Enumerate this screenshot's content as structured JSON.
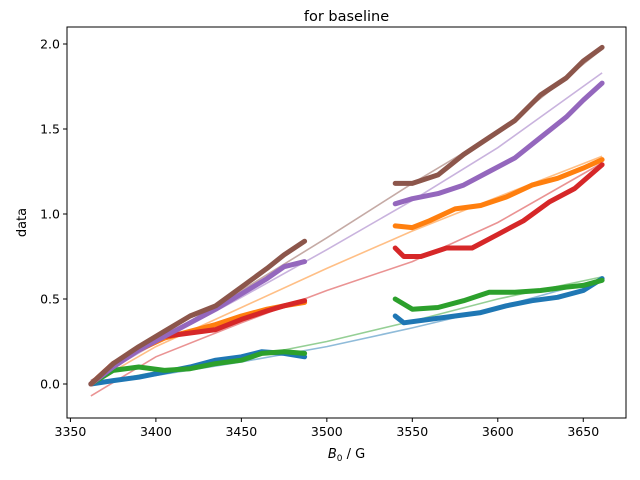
{
  "chart_data": {
    "type": "line",
    "title": "for baseline",
    "xlabel_main": "B",
    "xlabel_sub": "0",
    "xlabel_rest": " / G",
    "ylabel": "data",
    "xlim": [
      3348,
      3675
    ],
    "ylim": [
      -0.2,
      2.1
    ],
    "xticks": [
      3350,
      3400,
      3450,
      3500,
      3550,
      3600,
      3650
    ],
    "yticks": [
      0.0,
      0.5,
      1.0,
      1.5,
      2.0
    ],
    "grid": false,
    "series": [
      {
        "color": "#1f77b4",
        "data": [
          [
            3362,
            0.0
          ],
          [
            3375,
            0.02
          ],
          [
            3390,
            0.04
          ],
          [
            3405,
            0.07
          ],
          [
            3420,
            0.1
          ],
          [
            3435,
            0.14
          ],
          [
            3450,
            0.16
          ],
          [
            3462,
            0.19
          ],
          [
            3475,
            0.18
          ],
          [
            3487,
            0.16
          ],
          [
            3540,
            0.4
          ],
          [
            3545,
            0.36
          ],
          [
            3560,
            0.38
          ],
          [
            3575,
            0.4
          ],
          [
            3590,
            0.42
          ],
          [
            3605,
            0.46
          ],
          [
            3620,
            0.49
          ],
          [
            3635,
            0.51
          ],
          [
            3650,
            0.55
          ],
          [
            3661,
            0.62
          ]
        ],
        "fit": [
          [
            3362,
            0.0
          ],
          [
            3400,
            0.05
          ],
          [
            3450,
            0.13
          ],
          [
            3500,
            0.22
          ],
          [
            3550,
            0.33
          ],
          [
            3600,
            0.45
          ],
          [
            3661,
            0.62
          ]
        ]
      },
      {
        "color": "#ff7f0e",
        "data": [
          [
            3362,
            0.0
          ],
          [
            3375,
            0.12
          ],
          [
            3390,
            0.2
          ],
          [
            3405,
            0.27
          ],
          [
            3420,
            0.31
          ],
          [
            3435,
            0.35
          ],
          [
            3450,
            0.4
          ],
          [
            3465,
            0.44
          ],
          [
            3475,
            0.46
          ],
          [
            3487,
            0.48
          ],
          [
            3540,
            0.93
          ],
          [
            3550,
            0.92
          ],
          [
            3560,
            0.96
          ],
          [
            3575,
            1.03
          ],
          [
            3590,
            1.05
          ],
          [
            3605,
            1.1
          ],
          [
            3620,
            1.17
          ],
          [
            3635,
            1.21
          ],
          [
            3650,
            1.27
          ],
          [
            3661,
            1.32
          ]
        ],
        "fit": [
          [
            3362,
            0.0
          ],
          [
            3400,
            0.22
          ],
          [
            3450,
            0.45
          ],
          [
            3500,
            0.68
          ],
          [
            3550,
            0.9
          ],
          [
            3600,
            1.1
          ],
          [
            3661,
            1.34
          ]
        ]
      },
      {
        "color": "#2ca02c",
        "data": [
          [
            3362,
            0.0
          ],
          [
            3375,
            0.08
          ],
          [
            3390,
            0.1
          ],
          [
            3405,
            0.08
          ],
          [
            3420,
            0.09
          ],
          [
            3435,
            0.12
          ],
          [
            3450,
            0.14
          ],
          [
            3462,
            0.18
          ],
          [
            3475,
            0.19
          ],
          [
            3487,
            0.18
          ],
          [
            3540,
            0.5
          ],
          [
            3550,
            0.44
          ],
          [
            3565,
            0.45
          ],
          [
            3580,
            0.49
          ],
          [
            3595,
            0.54
          ],
          [
            3610,
            0.54
          ],
          [
            3625,
            0.55
          ],
          [
            3640,
            0.57
          ],
          [
            3650,
            0.58
          ],
          [
            3661,
            0.61
          ]
        ],
        "fit": [
          [
            3362,
            0.0
          ],
          [
            3400,
            0.07
          ],
          [
            3450,
            0.15
          ],
          [
            3500,
            0.25
          ],
          [
            3550,
            0.37
          ],
          [
            3600,
            0.5
          ],
          [
            3661,
            0.63
          ]
        ]
      },
      {
        "color": "#d62728",
        "data": [
          [
            3362,
            0.0
          ],
          [
            3375,
            0.12
          ],
          [
            3390,
            0.2
          ],
          [
            3405,
            0.28
          ],
          [
            3420,
            0.3
          ],
          [
            3435,
            0.32
          ],
          [
            3450,
            0.38
          ],
          [
            3465,
            0.43
          ],
          [
            3475,
            0.46
          ],
          [
            3487,
            0.49
          ],
          [
            3540,
            0.8
          ],
          [
            3545,
            0.75
          ],
          [
            3555,
            0.75
          ],
          [
            3570,
            0.8
          ],
          [
            3585,
            0.8
          ],
          [
            3600,
            0.88
          ],
          [
            3615,
            0.96
          ],
          [
            3630,
            1.07
          ],
          [
            3645,
            1.15
          ],
          [
            3661,
            1.29
          ]
        ],
        "fit": [
          [
            3362,
            -0.07
          ],
          [
            3400,
            0.16
          ],
          [
            3450,
            0.36
          ],
          [
            3500,
            0.55
          ],
          [
            3550,
            0.72
          ],
          [
            3600,
            0.95
          ],
          [
            3661,
            1.3
          ]
        ]
      },
      {
        "color": "#9467bd",
        "data": [
          [
            3362,
            0.0
          ],
          [
            3375,
            0.1
          ],
          [
            3390,
            0.2
          ],
          [
            3405,
            0.28
          ],
          [
            3420,
            0.36
          ],
          [
            3435,
            0.44
          ],
          [
            3450,
            0.53
          ],
          [
            3465,
            0.62
          ],
          [
            3475,
            0.69
          ],
          [
            3487,
            0.72
          ],
          [
            3540,
            1.06
          ],
          [
            3550,
            1.09
          ],
          [
            3565,
            1.12
          ],
          [
            3580,
            1.17
          ],
          [
            3595,
            1.25
          ],
          [
            3610,
            1.33
          ],
          [
            3625,
            1.45
          ],
          [
            3640,
            1.57
          ],
          [
            3650,
            1.67
          ],
          [
            3661,
            1.77
          ]
        ],
        "fit": [
          [
            3362,
            0.02
          ],
          [
            3400,
            0.24
          ],
          [
            3450,
            0.51
          ],
          [
            3500,
            0.79
          ],
          [
            3550,
            1.08
          ],
          [
            3600,
            1.39
          ],
          [
            3661,
            1.83
          ]
        ]
      },
      {
        "color": "#8c564b",
        "data": [
          [
            3362,
            0.0
          ],
          [
            3375,
            0.12
          ],
          [
            3390,
            0.22
          ],
          [
            3405,
            0.31
          ],
          [
            3420,
            0.4
          ],
          [
            3435,
            0.46
          ],
          [
            3450,
            0.57
          ],
          [
            3465,
            0.68
          ],
          [
            3475,
            0.76
          ],
          [
            3487,
            0.84
          ],
          [
            3540,
            1.18
          ],
          [
            3550,
            1.18
          ],
          [
            3565,
            1.23
          ],
          [
            3580,
            1.35
          ],
          [
            3595,
            1.45
          ],
          [
            3610,
            1.55
          ],
          [
            3625,
            1.7
          ],
          [
            3640,
            1.8
          ],
          [
            3650,
            1.9
          ],
          [
            3661,
            1.98
          ]
        ],
        "fit": [
          [
            3362,
            0.02
          ],
          [
            3400,
            0.25
          ],
          [
            3450,
            0.55
          ],
          [
            3500,
            0.86
          ],
          [
            3550,
            1.18
          ],
          [
            3600,
            1.48
          ],
          [
            3661,
            1.97
          ]
        ]
      }
    ]
  }
}
